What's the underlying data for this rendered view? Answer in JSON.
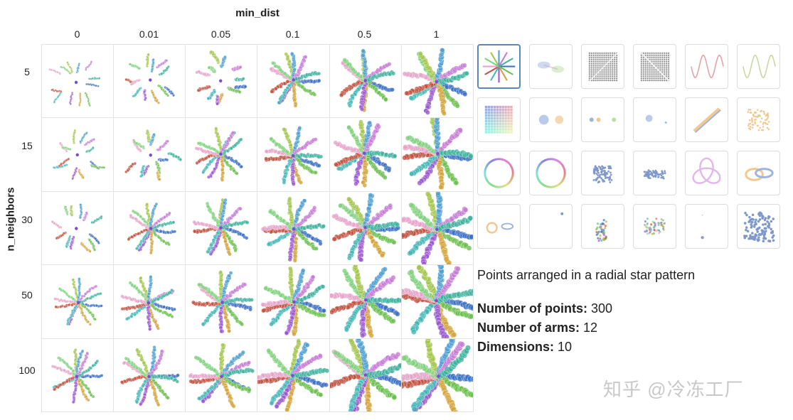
{
  "col_axis_title": "min_dist",
  "row_axis_title": "n_neighbors",
  "col_labels": [
    "0",
    "0.01",
    "0.05",
    "0.1",
    "0.5",
    "1"
  ],
  "row_labels": [
    "5",
    "15",
    "30",
    "50",
    "100"
  ],
  "arm_colors": [
    "#3b6fc6",
    "#6bbf4e",
    "#d3a33a",
    "#9b59d0",
    "#45b7b7",
    "#c2513f",
    "#e6a2c9",
    "#7fd17d",
    "#a3c64b",
    "#4f9fd1",
    "#c77ad6",
    "#3fb29d"
  ],
  "thumbnails": [
    {
      "name": "thumb-star",
      "icon": "star-pattern-icon",
      "selected": true
    },
    {
      "name": "thumb-linked-clusters",
      "icon": "linked-clusters-icon",
      "selected": false
    },
    {
      "name": "thumb-grid-diagonal",
      "icon": "grid-diagonal-icon",
      "selected": false
    },
    {
      "name": "thumb-grid-antidiagonal",
      "icon": "grid-antidiagonal-icon",
      "selected": false
    },
    {
      "name": "thumb-sine-wave-pink",
      "icon": "sine-wave-icon",
      "selected": false
    },
    {
      "name": "thumb-sine-wave-green",
      "icon": "sine-wave-icon",
      "selected": false
    },
    {
      "name": "thumb-color-grid",
      "icon": "color-grid-icon",
      "selected": false
    },
    {
      "name": "thumb-two-blobs",
      "icon": "two-blobs-icon",
      "selected": false
    },
    {
      "name": "thumb-three-dots",
      "icon": "three-dots-icon",
      "selected": false
    },
    {
      "name": "thumb-blob-and-dot",
      "icon": "blob-dot-icon",
      "selected": false
    },
    {
      "name": "thumb-diagonal-lines",
      "icon": "diagonal-lines-icon",
      "selected": false
    },
    {
      "name": "thumb-gaussian-cloud",
      "icon": "gaussian-cloud-icon",
      "selected": false
    },
    {
      "name": "thumb-circle-faint",
      "icon": "circle-icon",
      "selected": false
    },
    {
      "name": "thumb-circle",
      "icon": "circle-icon",
      "selected": false
    },
    {
      "name": "thumb-dense-cloud",
      "icon": "dense-cloud-icon",
      "selected": false
    },
    {
      "name": "thumb-flat-cloud",
      "icon": "flat-cloud-icon",
      "selected": false
    },
    {
      "name": "thumb-trefoil-knot",
      "icon": "trefoil-knot-icon",
      "selected": false
    },
    {
      "name": "thumb-linked-rings",
      "icon": "linked-rings-icon",
      "selected": false
    },
    {
      "name": "thumb-ring-and-ellipse",
      "icon": "ring-ellipse-icon",
      "selected": false
    },
    {
      "name": "thumb-single-dot",
      "icon": "single-dot-icon",
      "selected": false
    },
    {
      "name": "thumb-hierarchical-clusters",
      "icon": "hierarchical-clusters-icon",
      "selected": false
    },
    {
      "name": "thumb-mixed-clusters",
      "icon": "mixed-clusters-icon",
      "selected": false
    },
    {
      "name": "thumb-two-dots",
      "icon": "two-dots-icon",
      "selected": false
    },
    {
      "name": "thumb-uniform-square",
      "icon": "uniform-square-icon",
      "selected": false
    }
  ],
  "info": {
    "description": "Points arranged in a radial star pattern",
    "points_label": "Number of points:",
    "points_value": "300",
    "arms_label": "Number of arms:",
    "arms_value": "12",
    "dims_label": "Dimensions:",
    "dims_value": "10"
  },
  "watermark": "知乎 @冷冻工厂"
}
